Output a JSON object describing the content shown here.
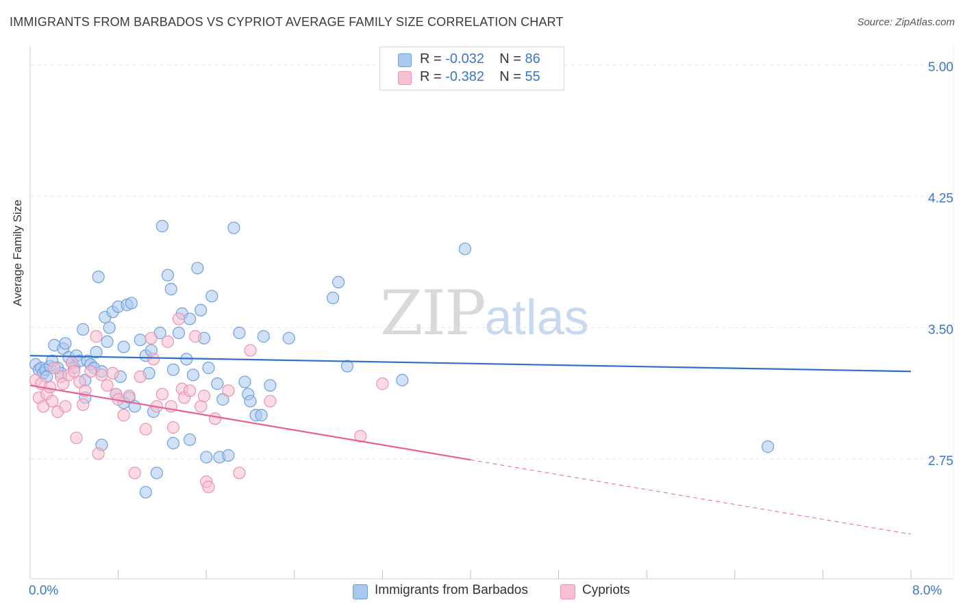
{
  "header": {
    "title": "IMMIGRANTS FROM BARBADOS VS CYPRIOT AVERAGE FAMILY SIZE CORRELATION CHART",
    "source": "Source: ZipAtlas.com"
  },
  "watermark": {
    "zip": "ZIP",
    "atlas": "atlas"
  },
  "legend": {
    "rows": [
      {
        "r_label": "R = ",
        "r_value": "-0.032",
        "n_label": "N = ",
        "n_value": "86",
        "color": "#a9c8ef",
        "border": "#6d9fe0"
      },
      {
        "r_label": "R = ",
        "r_value": "-0.382",
        "n_label": "N = ",
        "n_value": "55",
        "color": "#f7bfd0",
        "border": "#ee8fae"
      }
    ]
  },
  "bottom_legend": {
    "items": [
      {
        "label": "Immigrants from Barbados",
        "color": "#a9c8ef",
        "border": "#6d9fe0"
      },
      {
        "label": "Cypriots",
        "color": "#f7bfd0",
        "border": "#ee8fae"
      }
    ]
  },
  "chart_data": {
    "type": "scatter",
    "title": "IMMIGRANTS FROM BARBADOS VS CYPRIOT AVERAGE FAMILY SIZE CORRELATION CHART",
    "xlabel": "",
    "ylabel": "Average Family Size",
    "xlim": [
      0.0,
      8.0
    ],
    "ylim": [
      2.0,
      5.1
    ],
    "x_tick_labels": [
      "0.0%",
      "8.0%"
    ],
    "y_ticks": [
      2.75,
      3.5,
      4.25,
      5.0
    ],
    "y_tick_labels": [
      "2.75",
      "3.50",
      "4.25",
      "5.00"
    ],
    "grid": "horizontal-dashed",
    "series": [
      {
        "name": "Immigrants from Barbados",
        "color": "#a9c8ef",
        "stroke": "#6d9fe0",
        "line_color": "#2f6fc8",
        "trend": {
          "x": [
            0.0,
            8.0
          ],
          "y": [
            3.34,
            3.25
          ],
          "dashed_after": null
        },
        "points": [
          [
            0.05,
            3.29
          ],
          [
            0.08,
            3.26
          ],
          [
            0.1,
            3.27
          ],
          [
            0.12,
            3.24
          ],
          [
            0.14,
            3.26
          ],
          [
            0.15,
            3.22
          ],
          [
            0.18,
            3.28
          ],
          [
            0.2,
            3.31
          ],
          [
            0.22,
            3.4
          ],
          [
            0.25,
            3.27
          ],
          [
            0.28,
            3.24
          ],
          [
            0.3,
            3.38
          ],
          [
            0.32,
            3.41
          ],
          [
            0.35,
            3.33
          ],
          [
            0.38,
            3.3
          ],
          [
            0.4,
            3.27
          ],
          [
            0.42,
            3.34
          ],
          [
            0.45,
            3.31
          ],
          [
            0.48,
            3.49
          ],
          [
            0.5,
            3.2
          ],
          [
            0.52,
            3.31
          ],
          [
            0.55,
            3.29
          ],
          [
            0.58,
            3.27
          ],
          [
            0.6,
            3.36
          ],
          [
            0.62,
            3.79
          ],
          [
            0.65,
            3.25
          ],
          [
            0.68,
            3.56
          ],
          [
            0.7,
            3.42
          ],
          [
            0.72,
            3.5
          ],
          [
            0.75,
            3.59
          ],
          [
            0.78,
            3.12
          ],
          [
            0.8,
            3.62
          ],
          [
            0.82,
            3.22
          ],
          [
            0.85,
            3.39
          ],
          [
            0.88,
            3.63
          ],
          [
            0.9,
            3.1
          ],
          [
            0.92,
            3.64
          ],
          [
            0.95,
            3.05
          ],
          [
            1.0,
            3.43
          ],
          [
            1.05,
            3.34
          ],
          [
            1.08,
            3.24
          ],
          [
            1.1,
            3.37
          ],
          [
            1.12,
            3.02
          ],
          [
            1.15,
            2.67
          ],
          [
            1.18,
            3.47
          ],
          [
            1.2,
            4.08
          ],
          [
            1.25,
            3.8
          ],
          [
            1.28,
            3.72
          ],
          [
            1.3,
            3.26
          ],
          [
            1.35,
            3.47
          ],
          [
            1.38,
            3.58
          ],
          [
            1.42,
            3.32
          ],
          [
            1.45,
            3.55
          ],
          [
            1.48,
            3.23
          ],
          [
            1.52,
            3.84
          ],
          [
            1.55,
            3.6
          ],
          [
            1.58,
            3.44
          ],
          [
            1.62,
            3.27
          ],
          [
            1.65,
            3.68
          ],
          [
            1.7,
            3.18
          ],
          [
            1.72,
            2.76
          ],
          [
            1.75,
            3.09
          ],
          [
            1.8,
            2.77
          ],
          [
            1.85,
            4.07
          ],
          [
            1.9,
            3.47
          ],
          [
            1.95,
            3.19
          ],
          [
            1.98,
            3.12
          ],
          [
            2.0,
            3.08
          ],
          [
            2.05,
            3.0
          ],
          [
            2.1,
            3.0
          ],
          [
            2.12,
            3.45
          ],
          [
            2.18,
            3.17
          ],
          [
            2.35,
            3.44
          ],
          [
            2.75,
            3.67
          ],
          [
            2.8,
            3.76
          ],
          [
            2.88,
            3.28
          ],
          [
            3.38,
            3.2
          ],
          [
            3.95,
            3.95
          ],
          [
            6.7,
            2.82
          ],
          [
            0.5,
            3.1
          ],
          [
            0.65,
            2.83
          ],
          [
            0.85,
            3.07
          ],
          [
            1.05,
            2.56
          ],
          [
            1.3,
            2.84
          ],
          [
            1.45,
            2.86
          ],
          [
            1.6,
            2.76
          ]
        ]
      },
      {
        "name": "Cypriots",
        "color": "#f7bfd0",
        "stroke": "#ee8fae",
        "line_color": "#e8608d",
        "trend": {
          "x": [
            0.0,
            8.0
          ],
          "y": [
            3.17,
            2.32
          ],
          "solid_until": 4.0
        },
        "points": [
          [
            0.05,
            3.2
          ],
          [
            0.08,
            3.1
          ],
          [
            0.1,
            3.18
          ],
          [
            0.12,
            3.05
          ],
          [
            0.15,
            3.12
          ],
          [
            0.18,
            3.16
          ],
          [
            0.2,
            3.08
          ],
          [
            0.22,
            3.27
          ],
          [
            0.25,
            3.02
          ],
          [
            0.28,
            3.22
          ],
          [
            0.3,
            3.18
          ],
          [
            0.32,
            3.05
          ],
          [
            0.35,
            3.23
          ],
          [
            0.38,
            3.3
          ],
          [
            0.4,
            3.25
          ],
          [
            0.42,
            2.87
          ],
          [
            0.45,
            3.19
          ],
          [
            0.48,
            3.06
          ],
          [
            0.5,
            3.14
          ],
          [
            0.55,
            3.25
          ],
          [
            0.6,
            3.45
          ],
          [
            0.62,
            2.78
          ],
          [
            0.65,
            3.23
          ],
          [
            0.7,
            3.17
          ],
          [
            0.75,
            3.24
          ],
          [
            0.78,
            3.12
          ],
          [
            0.8,
            3.09
          ],
          [
            0.85,
            3.0
          ],
          [
            0.9,
            3.11
          ],
          [
            0.95,
            2.67
          ],
          [
            1.0,
            3.22
          ],
          [
            1.05,
            2.92
          ],
          [
            1.1,
            3.44
          ],
          [
            1.12,
            3.32
          ],
          [
            1.15,
            3.05
          ],
          [
            1.2,
            3.12
          ],
          [
            1.25,
            3.42
          ],
          [
            1.28,
            3.05
          ],
          [
            1.3,
            2.93
          ],
          [
            1.35,
            3.55
          ],
          [
            1.38,
            3.15
          ],
          [
            1.4,
            3.1
          ],
          [
            1.45,
            3.14
          ],
          [
            1.5,
            3.45
          ],
          [
            1.55,
            3.05
          ],
          [
            1.58,
            3.11
          ],
          [
            1.6,
            2.62
          ],
          [
            1.62,
            2.59
          ],
          [
            1.68,
            2.98
          ],
          [
            1.8,
            3.14
          ],
          [
            1.9,
            2.67
          ],
          [
            2.0,
            3.37
          ],
          [
            2.18,
            3.08
          ],
          [
            3.0,
            2.88
          ],
          [
            3.2,
            3.18
          ]
        ]
      }
    ]
  }
}
